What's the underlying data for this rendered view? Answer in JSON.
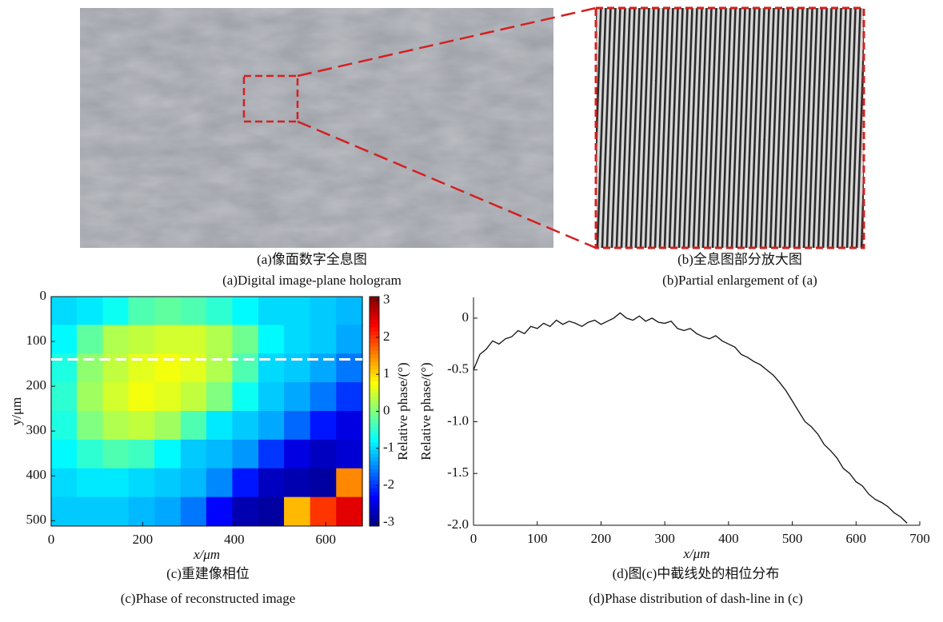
{
  "captions": {
    "a": {
      "zh": "(a)像面数字全息图",
      "en": "(a)Digital image-plane hologram"
    },
    "b": {
      "zh": "(b)全息图部分放大图",
      "en": "(b)Partial enlargement of (a)"
    }
  },
  "chart_data": [
    {
      "type": "heatmap",
      "title": "(c)重建像相位",
      "subtitle": "(c)Phase of reconstructed image",
      "xlabel": "x/μm",
      "ylabel": "y/μm",
      "colorbar_label": "Relative phase/(°)",
      "colormap": "jet",
      "xlim": [
        0,
        680
      ],
      "ylim": [
        0,
        512
      ],
      "y_inverted": true,
      "xticks": [
        0,
        200,
        400,
        600
      ],
      "yticks": [
        0,
        100,
        200,
        300,
        400,
        500
      ],
      "clim": [
        -3.1,
        3.1
      ],
      "cticks": [
        -3,
        -2,
        -1,
        0,
        1,
        2,
        3
      ],
      "dash_line_y": 140,
      "dash_line_color": "#ffffff",
      "x": [
        28,
        85,
        142,
        198,
        255,
        312,
        368,
        425,
        482,
        538,
        595,
        652
      ],
      "y": [
        32,
        96,
        160,
        224,
        288,
        352,
        416,
        480
      ],
      "values": [
        [
          -1,
          -0.9,
          -0.7,
          -0.3,
          -0.2,
          -0.3,
          -0.5,
          -0.8,
          -1,
          -1,
          -1.1,
          -1.2
        ],
        [
          -0.8,
          -0.2,
          0.3,
          0.4,
          0.5,
          0.5,
          0.3,
          -0.1,
          -0.8,
          -1,
          -1.1,
          -1.3
        ],
        [
          -0.6,
          0.1,
          0.4,
          0.6,
          0.7,
          0.6,
          0.3,
          -0.3,
          -1,
          -1.1,
          -1.3,
          -1.6
        ],
        [
          -0.5,
          0.2,
          0.5,
          0.7,
          0.6,
          0.4,
          0,
          -0.7,
          -1.1,
          -1.3,
          -1.6,
          -2
        ],
        [
          -0.6,
          0,
          0.3,
          0.4,
          0.2,
          -0.3,
          -0.9,
          -1.1,
          -1.3,
          -1.7,
          -2.2,
          -2.5
        ],
        [
          -0.8,
          -0.5,
          -0.3,
          -0.4,
          -0.8,
          -1.1,
          -1.2,
          -1.4,
          -2,
          -2.5,
          -2.7,
          -2.6
        ],
        [
          -1,
          -0.9,
          -0.9,
          -1,
          -1.1,
          -1.2,
          -1.5,
          -2.2,
          -2.7,
          -2.8,
          -2.9,
          1.5
        ],
        [
          -1.1,
          -1.1,
          -1.1,
          -1.2,
          -1.3,
          -1.6,
          -2.3,
          -2.8,
          -2.9,
          1.2,
          2,
          2.5
        ]
      ]
    },
    {
      "type": "line",
      "title": "(d)图(c)中截线处的相位分布",
      "subtitle": "(d)Phase distribution of dash-line in (c)",
      "xlabel": "x/μm",
      "ylabel": "Relative phase/(°)",
      "color": "#111111",
      "xlim": [
        0,
        700
      ],
      "ylim": [
        -2,
        0.2
      ],
      "xticks": [
        0,
        100,
        200,
        300,
        400,
        500,
        600,
        700
      ],
      "yticks": [
        {
          "value": -2,
          "label": "-2.0"
        },
        -1.5,
        {
          "value": -1,
          "label": "-1.0"
        },
        -0.5,
        0
      ],
      "x": [
        0,
        10,
        20,
        30,
        40,
        50,
        60,
        70,
        80,
        90,
        100,
        110,
        120,
        130,
        140,
        150,
        160,
        170,
        180,
        190,
        200,
        210,
        220,
        230,
        240,
        250,
        260,
        270,
        280,
        290,
        300,
        310,
        320,
        330,
        340,
        350,
        360,
        370,
        380,
        390,
        400,
        410,
        420,
        430,
        440,
        450,
        460,
        470,
        480,
        490,
        500,
        510,
        520,
        530,
        540,
        550,
        560,
        570,
        580,
        590,
        600,
        610,
        620,
        630,
        640,
        650,
        660,
        670,
        680
      ],
      "values": [
        -0.5,
        -0.35,
        -0.3,
        -0.22,
        -0.25,
        -0.2,
        -0.18,
        -0.12,
        -0.15,
        -0.08,
        -0.1,
        -0.05,
        -0.08,
        -0.02,
        -0.06,
        -0.03,
        -0.05,
        -0.08,
        -0.04,
        -0.02,
        -0.06,
        -0.03,
        0,
        0.05,
        0,
        -0.02,
        0.02,
        -0.03,
        0,
        -0.04,
        -0.05,
        -0.03,
        -0.1,
        -0.12,
        -0.1,
        -0.15,
        -0.18,
        -0.2,
        -0.17,
        -0.22,
        -0.25,
        -0.28,
        -0.35,
        -0.38,
        -0.42,
        -0.45,
        -0.5,
        -0.55,
        -0.62,
        -0.7,
        -0.8,
        -0.9,
        -1,
        -1.05,
        -1.12,
        -1.22,
        -1.28,
        -1.35,
        -1.45,
        -1.5,
        -1.58,
        -1.62,
        -1.7,
        -1.75,
        -1.78,
        -1.82,
        -1.88,
        -1.92,
        -1.98
      ]
    }
  ]
}
